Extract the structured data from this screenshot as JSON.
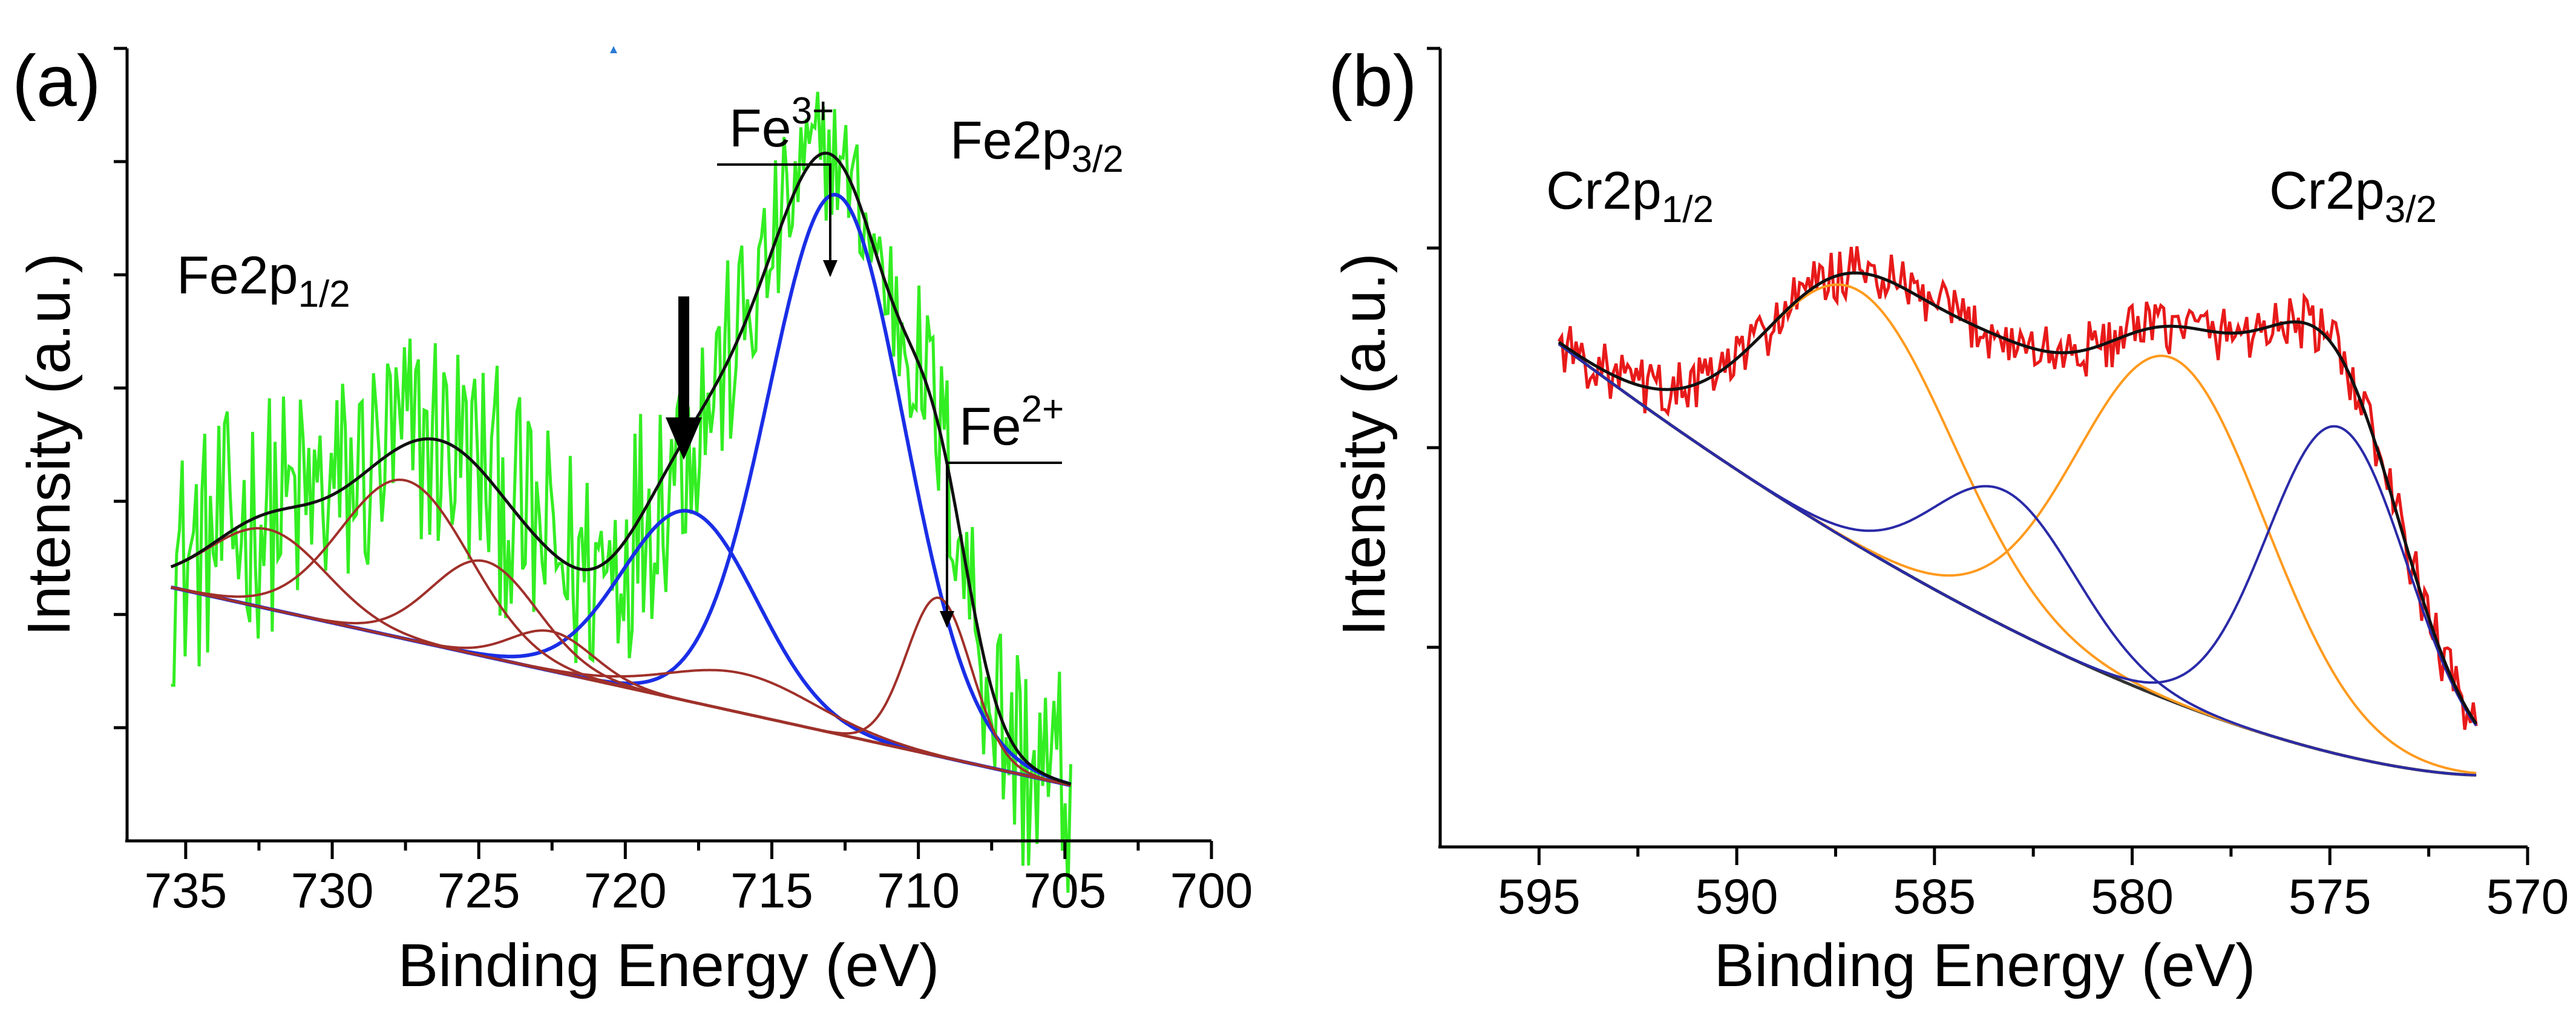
{
  "chart_data": [
    {
      "type": "line",
      "panel_label": "(a)",
      "xlabel": "Binding Energy (eV)",
      "ylabel": "Intensity (a.u.)",
      "xlim": [
        737,
        700
      ],
      "x_ticks": [
        735,
        730,
        725,
        720,
        715,
        710,
        705,
        700
      ],
      "ylim": [
        0,
        100
      ],
      "y_tick_labels": "none",
      "annotations": {
        "fe2p12_main": "Fe2p",
        "fe2p12_sub": "1/2",
        "fe2p32_main": "Fe2p",
        "fe2p32_sub": "3/2",
        "fe3_main": "Fe",
        "fe3_sup": "3+",
        "fe2_main": "Fe",
        "fe2_sup": "2+"
      },
      "colors": {
        "raw": "#33ee22",
        "envelope": "#111111",
        "fe3": "#1a2ee6",
        "satellite": "#a0302a",
        "background": "#8b3a2a",
        "arrow": "#000000"
      },
      "series": [
        {
          "name": "Background",
          "color": "#8b3a2a",
          "peaks": []
        },
        {
          "name": "Fe3+ main",
          "color": "#1a2ee6",
          "peaks": [
            {
              "center": 712.8,
              "height": 68,
              "width": 2.3
            }
          ]
        },
        {
          "name": "Fe3+ satellite",
          "color": "#1a2ee6",
          "peaks": [
            {
              "center": 717.8,
              "height": 24,
              "width": 2.3
            }
          ]
        },
        {
          "name": "Fe2+",
          "color": "#a0302a",
          "peaks": [
            {
              "center": 709.3,
              "height": 20,
              "width": 1.1
            }
          ]
        },
        {
          "name": "Fe2+ satellite",
          "color": "#a0302a",
          "peaks": [
            {
              "center": 716.0,
              "height": 5,
              "width": 2.5
            }
          ]
        },
        {
          "name": "Fe2p1/2 component 1",
          "color": "#a0302a",
          "peaks": [
            {
              "center": 727.5,
              "height": 20,
              "width": 2.2
            }
          ]
        },
        {
          "name": "Fe2p1/2 component 2",
          "color": "#a0302a",
          "peaks": [
            {
              "center": 724.8,
              "height": 12,
              "width": 1.8
            }
          ]
        },
        {
          "name": "Fe2p1/2 component 3",
          "color": "#a0302a",
          "peaks": [
            {
              "center": 732.2,
              "height": 10,
              "width": 2.0
            }
          ]
        },
        {
          "name": "Fe2p1/2 component 4",
          "color": "#a0302a",
          "peaks": [
            {
              "center": 722.5,
              "height": 5,
              "width": 1.4
            }
          ]
        },
        {
          "name": "Envelope",
          "color": "#111111",
          "peaks": "sum"
        },
        {
          "name": "Raw data",
          "color": "#33ee22",
          "peaks": "noisy"
        }
      ],
      "background_line": {
        "x": [
          735.5,
          704.8
        ],
        "y": [
          32,
          7
        ]
      }
    },
    {
      "type": "line",
      "panel_label": "(b)",
      "xlabel": "Binding Energy (eV)",
      "ylabel": "Intensity (a.u.)",
      "xlim": [
        597.5,
        570
      ],
      "x_ticks": [
        595,
        590,
        585,
        580,
        575,
        570
      ],
      "ylim": [
        0,
        100
      ],
      "y_tick_labels": "none",
      "annotations": {
        "cr2p12_main": "Cr2p",
        "cr2p12_sub": "1/2",
        "cr2p32_main": "Cr2p",
        "cr2p32_sub": "3/2"
      },
      "colors": {
        "raw": "#e81a1a",
        "envelope": "#111111",
        "orange": "#ff9a1e",
        "navy": "#2a2aa8",
        "background": "#333333"
      },
      "series": [
        {
          "name": "Background",
          "color": "#333333",
          "peaks": []
        },
        {
          "name": "Cr2p1/2 main",
          "color": "#ff9a1e",
          "peaks": [
            {
              "center": 586.9,
              "height": 32,
              "width": 2.4
            }
          ]
        },
        {
          "name": "Cr2p3/2 main",
          "color": "#ff9a1e",
          "peaks": [
            {
              "center": 579.0,
              "height": 43,
              "width": 2.4
            }
          ]
        },
        {
          "name": "Cr2p1/2 satellite",
          "color": "#2a2aa8",
          "peaks": [
            {
              "center": 583.2,
              "height": 17,
              "width": 1.8
            }
          ]
        },
        {
          "name": "Cr2p3/2 satellite",
          "color": "#2a2aa8",
          "peaks": [
            {
              "center": 574.8,
              "height": 41,
              "width": 1.8
            }
          ]
        },
        {
          "name": "Envelope",
          "color": "#111111",
          "peaks": "sum"
        },
        {
          "name": "Raw data",
          "color": "#e81a1a",
          "peaks": "noisy"
        }
      ],
      "background_curve": {
        "x": [
          594.5,
          571.3
        ],
        "y": [
          63,
          9
        ]
      }
    }
  ]
}
